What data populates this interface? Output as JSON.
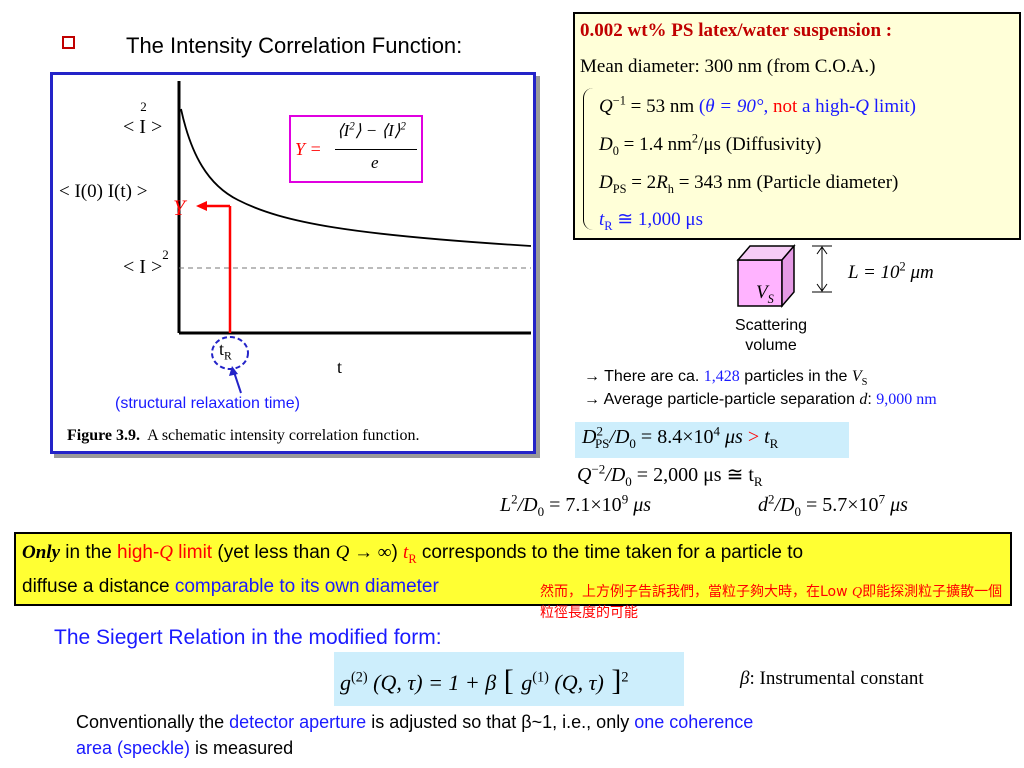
{
  "title": "The Intensity Correlation Function:",
  "figure": {
    "label_i2_avg": "< I >",
    "label_i2_avg_sup": "2",
    "label_i0_it": "< I(0) I(t) >",
    "label_i_avg2": "< I >",
    "label_i_avg2_sup": "2",
    "y_symbol": "Y",
    "tr_label": "t",
    "tr_sub": "R",
    "t_axis": "t",
    "formula_y": "Y =",
    "formula_num_1": "⟨I",
    "formula_num_1_sup": "2",
    "formula_num_2": "⟩ − ⟨I⟩",
    "formula_num_2_sup": "2",
    "formula_den": "e",
    "caption_bold": "Figure 3.9.",
    "caption_text": "A schematic intensity correlation function.",
    "structural_label": "(structural relaxation time)"
  },
  "info_box": {
    "title": "0.002 wt% PS latex/water suspension :",
    "mean": "Mean diameter: 300 nm (from C.O.A.)",
    "line1": {
      "q": "Q",
      "q_sup": "−1",
      "value": " = 53 nm ",
      "paren_open": "(",
      "theta": "θ = 90°",
      "comma": ", ",
      "not": "not",
      "high": " a high-",
      "qitalic": "Q",
      "limit": " limit)"
    },
    "line2": {
      "d": "D",
      "d_sub": "0",
      "value": " = 1.4  nm",
      "value_sup": "2",
      "rest": "/μs (Diffusivity)"
    },
    "line3": {
      "d": "D",
      "d_sub": "PS",
      "mid": " = 2",
      "r": "R",
      "r_sub": "h",
      "rest": " = 343 nm (Particle diameter)"
    },
    "line4": {
      "t": "t",
      "t_sub": "R",
      "rest": " ≅ 1,000 μs"
    }
  },
  "cube": {
    "vs": "V",
    "vs_sub": "S",
    "l_label": "L = 10",
    "l_sup": "2",
    "l_unit": " μm",
    "scatter_line1": "Scattering",
    "scatter_line2": "volume"
  },
  "statements": {
    "s1_pre": "→ There are ca. ",
    "s1_num": "1,428",
    "s1_mid": " particles in the ",
    "s1_v": "V",
    "s1_v_sub": "S",
    "s2_pre": "→ Average particle-particle separation ",
    "s2_d": "d",
    "s2_colon": ": ",
    "s2_num": "9,000 nm"
  },
  "equations": {
    "eq1_left": "D",
    "eq1_left_sup": "2",
    "eq1_left_sub": "PS",
    "eq1_mid": "/D",
    "eq1_mid_sub": "0",
    "eq1_val": " = 8.4×10",
    "eq1_val_sup": "4",
    "eq1_unit": " μs ",
    "eq1_gt": ">",
    "eq1_t": " t",
    "eq1_t_sub": "R",
    "eq2_q": "Q",
    "eq2_q_sup": "−2",
    "eq2_mid": "/D",
    "eq2_mid_sub": "0",
    "eq2_val": " = 2,000  μs ≅ t",
    "eq2_t_sub": "R",
    "eq3_l": "L",
    "eq3_l_sup": "2",
    "eq3_mid": "/D",
    "eq3_mid_sub": "0",
    "eq3_val": " = 7.1×10",
    "eq3_val_sup": "9",
    "eq3_unit": "  μs",
    "eq4_d": "d",
    "eq4_d_sup": "2",
    "eq4_mid": "/D",
    "eq4_mid_sub": "0",
    "eq4_val": " = 5.7×10",
    "eq4_val_sup": "7",
    "eq4_unit": "  μs"
  },
  "highlight": {
    "only": "Only",
    "in_the": " in the ",
    "high": "high-",
    "q": "Q",
    "limit": " limit",
    "yet": " (yet less than ",
    "q_inf": "Q → ∞",
    "close": ") ",
    "tr": "t",
    "tr_sub": "R",
    "corresponds": "  corresponds to the time taken for a particle to",
    "line2_pre": "diffuse a distance ",
    "comparable": "comparable to its own diameter"
  },
  "chinese_note": {
    "pre": "然而，上方例子告訴我們，當粒子夠大時，在Low ",
    "q": "Q",
    "post": "即能探測粒子擴散一個粒徑長度的可能"
  },
  "siegert": {
    "title": "The Siegert Relation in the modified form:",
    "eq_g2": "g",
    "eq_g2_sup": "(2)",
    "eq_mid": " (Q, τ) = 1 + β",
    "eq_br_open": " [ ",
    "eq_g1": "g",
    "eq_g1_sup": "(1)",
    "eq_args": " (Q, τ)",
    "eq_br_close": " ]",
    "eq_outer_sup": "2",
    "beta_sym": "β",
    "beta_text": ": Instrumental constant"
  },
  "bottom": {
    "line1_pre": "Conventionally the ",
    "detector": "detector aperture",
    "line1_mid": " is adjusted so that β~1, i.e., only ",
    "one_coh": "one coherence",
    "line2_area": "area (speckle)",
    "line2_post": " is measured"
  }
}
